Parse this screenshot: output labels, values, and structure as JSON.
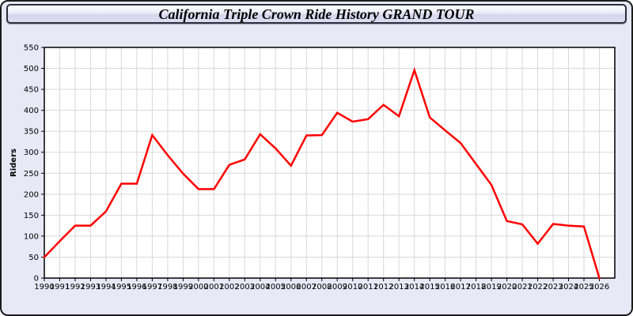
{
  "window": {
    "title": "California Triple Crown Ride History GRAND TOUR"
  },
  "colors": {
    "page_bg": "#E8E8F7",
    "outer_border": "#1B1B1B",
    "titlebar_border": "#2E2E3E",
    "titlebar_gradient_top": "#FDFDFF",
    "titlebar_gradient_bottom": "#D6D6EE",
    "plot_bg": "#FFFFFF",
    "grid": "#D8D8D8",
    "axis": "#000000",
    "text": "#000000",
    "series": "#FF0000"
  },
  "chart_data": {
    "type": "line",
    "title": "California Triple Crown Ride History GRAND TOUR",
    "xlabel": "",
    "ylabel": "Riders",
    "xlim": [
      1990,
      2027
    ],
    "ylim": [
      0,
      550
    ],
    "y_tick_step": 50,
    "y_ticks": [
      0,
      50,
      100,
      150,
      200,
      250,
      300,
      350,
      400,
      450,
      500,
      550
    ],
    "grid": true,
    "legend": false,
    "x": [
      1990,
      1991,
      1992,
      1993,
      1994,
      1995,
      1996,
      1997,
      1998,
      1999,
      2000,
      2001,
      2002,
      2003,
      2004,
      2005,
      2006,
      2007,
      2008,
      2009,
      2010,
      2011,
      2012,
      2013,
      2014,
      2015,
      2016,
      2017,
      2018,
      2019,
      2020,
      2021,
      2022,
      2023,
      2024,
      2025,
      2026
    ],
    "series": [
      {
        "name": "Riders",
        "color": "#FF0000",
        "values": [
          50,
          88,
          125,
          125,
          159,
          225,
          225,
          341,
          293,
          249,
          212,
          212,
          270,
          283,
          343,
          309,
          268,
          340,
          341,
          394,
          373,
          379,
          413,
          386,
          496,
          383,
          352,
          322,
          272,
          222,
          136,
          128,
          82,
          129,
          125,
          123,
          0
        ]
      }
    ]
  }
}
